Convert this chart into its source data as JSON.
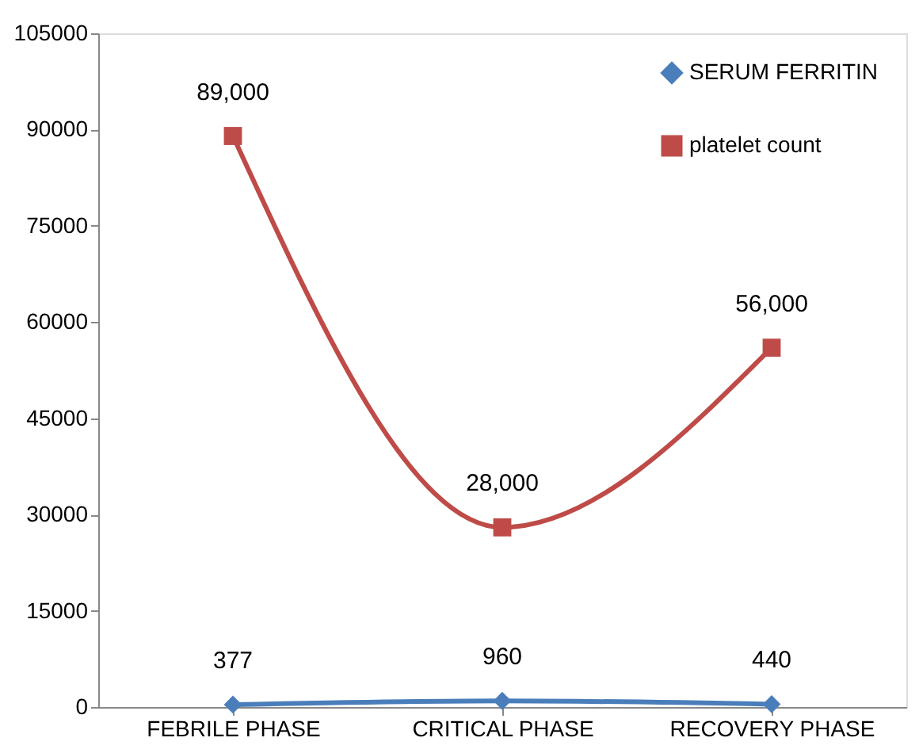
{
  "chart_data": {
    "type": "line",
    "categories": [
      "FEBRILE PHASE",
      "CRITICAL PHASE",
      "RECOVERY PHASE"
    ],
    "series": [
      {
        "name": "SERUM FERRITIN",
        "color": "#4a7ebb",
        "marker": "diamond",
        "values": [
          377,
          960,
          440
        ],
        "value_labels": [
          "377",
          "960",
          "440"
        ]
      },
      {
        "name": "platelet count",
        "color": "#be4b48",
        "marker": "square",
        "values": [
          89000,
          28000,
          56000
        ],
        "value_labels": [
          "89,000",
          "28,000",
          "56,000"
        ]
      }
    ],
    "ylim": [
      0,
      105000
    ],
    "yticks": [
      0,
      15000,
      30000,
      45000,
      60000,
      75000,
      90000,
      105000
    ],
    "grid": false,
    "legend": "top right",
    "line_style": "solid"
  }
}
